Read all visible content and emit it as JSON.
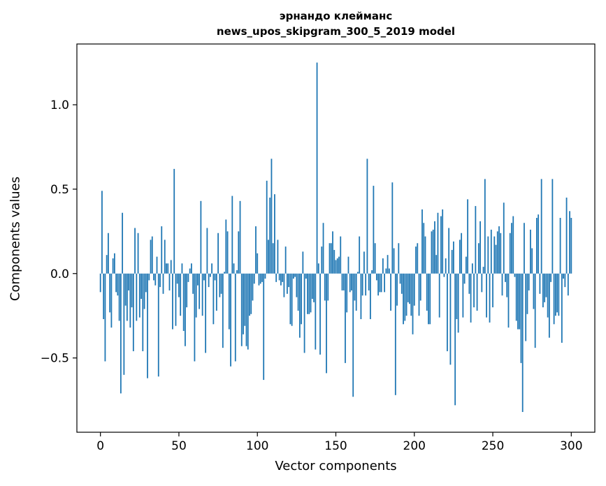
{
  "chart_data": {
    "type": "bar",
    "title_line1": "эрнандо клейманс",
    "title_line2": "news_upos_skipgram_300_5_2019 model",
    "xlabel": "Vector components",
    "ylabel": "Components values",
    "xlim": [
      -15,
      315
    ],
    "ylim": [
      -0.94,
      1.36
    ],
    "xticks": [
      0,
      50,
      100,
      150,
      200,
      250,
      300
    ],
    "xtick_labels": [
      "0",
      "50",
      "100",
      "150",
      "200",
      "250",
      "300"
    ],
    "yticks": [
      -0.5,
      0.0,
      0.5,
      1.0
    ],
    "ytick_labels": [
      "−0.5",
      "0.0",
      "0.5",
      "1.0"
    ],
    "bar_color": "#1f77b4",
    "grid": false,
    "values": [
      -0.11,
      0.49,
      -0.27,
      -0.52,
      0.11,
      0.24,
      -0.23,
      -0.32,
      0.09,
      0.12,
      -0.11,
      -0.13,
      -0.28,
      -0.71,
      0.36,
      -0.6,
      -0.19,
      -0.28,
      -0.1,
      -0.32,
      -0.2,
      -0.46,
      0.27,
      -0.28,
      0.24,
      -0.26,
      -0.15,
      -0.46,
      -0.21,
      -0.11,
      -0.62,
      -0.04,
      0.2,
      0.22,
      -0.04,
      -0.07,
      0.1,
      -0.61,
      -0.08,
      0.28,
      -0.12,
      0.2,
      0.06,
      0.06,
      -0.1,
      0.08,
      -0.33,
      0.62,
      -0.31,
      -0.06,
      -0.14,
      -0.25,
      0.06,
      -0.34,
      -0.43,
      -0.2,
      -0.05,
      0.03,
      0.06,
      -0.12,
      -0.52,
      -0.26,
      -0.07,
      -0.21,
      0.43,
      -0.25,
      -0.04,
      -0.47,
      0.27,
      -0.08,
      -0.02,
      0.06,
      -0.3,
      -0.04,
      -0.22,
      0.24,
      -0.14,
      -0.12,
      -0.44,
      0.01,
      0.32,
      0.25,
      -0.33,
      -0.55,
      0.46,
      0.06,
      -0.52,
      0.02,
      0.25,
      0.43,
      -0.43,
      -0.36,
      -0.31,
      -0.43,
      -0.45,
      -0.25,
      -0.24,
      -0.16,
      -0.06,
      0.28,
      0.12,
      -0.07,
      -0.06,
      -0.05,
      -0.63,
      -0.03,
      0.55,
      0.2,
      0.45,
      0.68,
      0.18,
      0.47,
      -0.05,
      0.2,
      -0.04,
      -0.07,
      -0.05,
      -0.14,
      0.16,
      -0.12,
      -0.08,
      -0.3,
      -0.31,
      -0.03,
      -0.02,
      -0.14,
      -0.22,
      -0.38,
      -0.3,
      0.13,
      -0.47,
      -0.03,
      -0.24,
      -0.24,
      -0.23,
      -0.15,
      -0.17,
      -0.45,
      1.25,
      0.06,
      -0.48,
      0.16,
      0.3,
      -0.16,
      -0.59,
      -0.16,
      0.18,
      0.18,
      0.25,
      0.14,
      0.08,
      0.09,
      0.1,
      0.22,
      -0.1,
      -0.1,
      -0.53,
      -0.23,
      0.1,
      -0.11,
      -0.1,
      -0.73,
      -0.16,
      -0.22,
      0.01,
      0.22,
      -0.27,
      -0.13,
      0.13,
      -0.13,
      0.68,
      -0.1,
      -0.27,
      0.02,
      0.52,
      0.18,
      -0.04,
      -0.13,
      -0.11,
      -0.11,
      0.09,
      -0.11,
      0.03,
      0.11,
      0.03,
      -0.22,
      0.54,
      0.15,
      -0.72,
      -0.19,
      0.18,
      -0.06,
      -0.12,
      -0.3,
      -0.28,
      -0.25,
      -0.17,
      -0.18,
      -0.25,
      -0.36,
      -0.19,
      0.16,
      0.18,
      -0.25,
      -0.16,
      0.38,
      0.3,
      0.22,
      -0.22,
      -0.3,
      -0.3,
      0.25,
      0.26,
      0.31,
      0.11,
      0.36,
      -0.26,
      0.34,
      0.38,
      -0.02,
      0.09,
      -0.46,
      0.27,
      -0.54,
      0.14,
      0.19,
      -0.78,
      -0.27,
      -0.35,
      0.2,
      0.24,
      -0.26,
      -0.06,
      0.1,
      0.44,
      -0.12,
      -0.29,
      0.06,
      -0.2,
      0.4,
      -0.22,
      0.18,
      0.31,
      -0.11,
      0.04,
      0.56,
      -0.26,
      0.22,
      -0.29,
      0.26,
      -0.2,
      0.22,
      0.17,
      0.25,
      0.28,
      0.24,
      -0.13,
      0.42,
      -0.05,
      -0.14,
      -0.32,
      0.24,
      0.3,
      0.34,
      -0.02,
      -0.28,
      -0.33,
      -0.33,
      -0.53,
      -0.82,
      0.3,
      -0.4,
      -0.24,
      -0.1,
      0.26,
      0.15,
      -0.21,
      -0.44,
      0.33,
      0.35,
      -0.12,
      0.56,
      -0.2,
      -0.17,
      -0.14,
      -0.26,
      -0.38,
      -0.05,
      0.56,
      -0.3,
      -0.25,
      -0.23,
      -0.25,
      0.33,
      -0.41,
      -0.03,
      -0.08,
      0.45,
      -0.13,
      0.37,
      0.33
    ]
  }
}
